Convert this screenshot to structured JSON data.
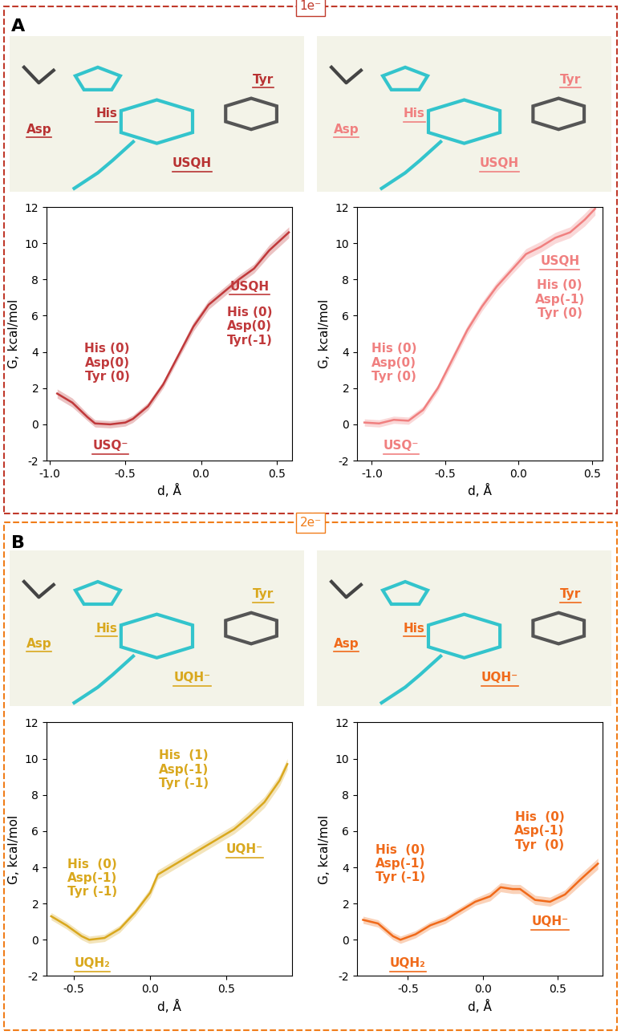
{
  "panels": [
    {
      "label": "A",
      "tag": "1e⁻",
      "color": "#c0392b",
      "images": [
        {
          "labels": [
            "Asp",
            "His",
            "USQH",
            "Tyr"
          ],
          "color": "#b83232"
        },
        {
          "labels": [
            "Asp",
            "His",
            "USQH",
            "Tyr"
          ],
          "color": "#f08080"
        }
      ]
    },
    {
      "label": "B",
      "tag": "2e⁻",
      "color": "#f07d1a",
      "images": [
        {
          "labels": [
            "Asp",
            "His",
            "UQH⁻",
            "Tyr"
          ],
          "color": "#d9a81e"
        },
        {
          "labels": [
            "Asp",
            "His",
            "UQH⁻",
            "Tyr"
          ],
          "color": "#f06a1a"
        }
      ]
    }
  ],
  "chart_data": [
    {
      "type": "line",
      "color": "#c0393b",
      "xlabel": "d, Å",
      "ylabel": "G, kcal/mol",
      "x": [
        -0.95,
        -0.85,
        -0.75,
        -0.7,
        -0.6,
        -0.5,
        -0.45,
        -0.35,
        -0.25,
        -0.15,
        -0.05,
        0.05,
        0.15,
        0.25,
        0.35,
        0.45,
        0.58
      ],
      "values": [
        1.7,
        1.2,
        0.4,
        0.05,
        0.0,
        0.1,
        0.3,
        1.0,
        2.2,
        3.8,
        5.4,
        6.6,
        7.3,
        8.0,
        8.6,
        9.6,
        10.6
      ],
      "error": [
        0.25,
        0.25,
        0.2,
        0.2,
        0.2,
        0.2,
        0.2,
        0.2,
        0.2,
        0.2,
        0.25,
        0.25,
        0.25,
        0.25,
        0.25,
        0.3,
        0.3
      ],
      "xlim": [
        -1.02,
        0.6
      ],
      "ylim": [
        -2,
        12
      ],
      "xticks": [
        -1.0,
        -0.5,
        0.0,
        0.5
      ],
      "yticks": [
        -2,
        0,
        2,
        4,
        6,
        8,
        10,
        12
      ],
      "annotations": [
        {
          "text": "His (0)\nAsp(0)\nTyr (0)",
          "x": -0.62,
          "y": 3.4
        },
        {
          "text": "USQ⁻",
          "x": -0.6,
          "y": -1.2
        },
        {
          "text": "USQH",
          "x": 0.32,
          "y": 7.6
        },
        {
          "text": "His (0)\nAsp(0)\nTyr(-1)",
          "x": 0.32,
          "y": 5.4
        }
      ]
    },
    {
      "type": "line",
      "color": "#f08080",
      "xlabel": "d, Å",
      "ylabel": "G, kcal/mol",
      "x": [
        -1.05,
        -0.95,
        -0.85,
        -0.75,
        -0.65,
        -0.55,
        -0.45,
        -0.35,
        -0.25,
        -0.15,
        -0.05,
        0.05,
        0.15,
        0.25,
        0.35,
        0.45,
        0.52
      ],
      "values": [
        0.1,
        0.05,
        0.25,
        0.2,
        0.8,
        2.0,
        3.6,
        5.2,
        6.5,
        7.6,
        8.5,
        9.4,
        9.8,
        10.3,
        10.6,
        11.3,
        11.9
      ],
      "error": [
        0.2,
        0.2,
        0.2,
        0.2,
        0.2,
        0.2,
        0.25,
        0.25,
        0.25,
        0.25,
        0.25,
        0.3,
        0.3,
        0.3,
        0.3,
        0.35,
        0.35
      ],
      "xlim": [
        -1.1,
        0.57
      ],
      "ylim": [
        -2,
        12
      ],
      "xticks": [
        -1.0,
        -0.5,
        0.0,
        0.5
      ],
      "yticks": [
        -2,
        0,
        2,
        4,
        6,
        8,
        10,
        12
      ],
      "annotations": [
        {
          "text": "USQH",
          "x": 0.28,
          "y": 9.0
        },
        {
          "text": "His (0)\nAsp(-1)\nTyr (0)",
          "x": 0.28,
          "y": 6.9
        },
        {
          "text": "His (0)\nAsp(0)\nTyr (0)",
          "x": -0.85,
          "y": 3.4
        },
        {
          "text": "USQ⁻",
          "x": -0.8,
          "y": -1.2
        }
      ]
    },
    {
      "type": "line",
      "color": "#d9a81e",
      "xlabel": "d, Å",
      "ylabel": "G, kcal/mol",
      "x": [
        -0.65,
        -0.55,
        -0.45,
        -0.4,
        -0.3,
        -0.2,
        -0.1,
        0.0,
        0.05,
        0.15,
        0.25,
        0.35,
        0.45,
        0.55,
        0.65,
        0.75,
        0.85,
        0.9
      ],
      "values": [
        1.3,
        0.8,
        0.2,
        0.0,
        0.1,
        0.6,
        1.5,
        2.6,
        3.6,
        4.1,
        4.6,
        5.1,
        5.6,
        6.1,
        6.8,
        7.6,
        8.8,
        9.7
      ],
      "error": [
        0.2,
        0.2,
        0.2,
        0.2,
        0.2,
        0.2,
        0.2,
        0.25,
        0.25,
        0.25,
        0.25,
        0.25,
        0.25,
        0.25,
        0.3,
        0.3,
        0.3,
        0.3
      ],
      "xlim": [
        -0.68,
        0.93
      ],
      "ylim": [
        -2,
        12
      ],
      "xticks": [
        -0.5,
        0.0,
        0.5
      ],
      "yticks": [
        -2,
        0,
        2,
        4,
        6,
        8,
        10,
        12
      ],
      "annotations": [
        {
          "text": "His  (0)\nAsp(-1)\nTyr (-1)",
          "x": -0.38,
          "y": 3.4
        },
        {
          "text": "UQH₂",
          "x": -0.38,
          "y": -1.3
        },
        {
          "text": "His  (1)\nAsp(-1)\nTyr (-1)",
          "x": 0.22,
          "y": 9.4
        },
        {
          "text": "UQH⁻",
          "x": 0.62,
          "y": 5.0
        }
      ]
    },
    {
      "type": "line",
      "color": "#f06a1a",
      "xlabel": "d, Å",
      "ylabel": "G, kcal/mol",
      "x": [
        -0.8,
        -0.7,
        -0.6,
        -0.55,
        -0.45,
        -0.35,
        -0.25,
        -0.15,
        -0.05,
        0.05,
        0.12,
        0.2,
        0.25,
        0.35,
        0.45,
        0.55,
        0.65,
        0.77
      ],
      "values": [
        1.1,
        0.9,
        0.2,
        0.0,
        0.3,
        0.8,
        1.1,
        1.6,
        2.1,
        2.4,
        2.9,
        2.8,
        2.8,
        2.2,
        2.1,
        2.5,
        3.3,
        4.2
      ],
      "error": [
        0.2,
        0.2,
        0.2,
        0.2,
        0.2,
        0.2,
        0.2,
        0.2,
        0.2,
        0.25,
        0.25,
        0.25,
        0.25,
        0.25,
        0.25,
        0.25,
        0.3,
        0.3
      ],
      "xlim": [
        -0.84,
        0.8
      ],
      "ylim": [
        -2,
        12
      ],
      "xticks": [
        -0.5,
        0.0,
        0.5
      ],
      "yticks": [
        -2,
        0,
        2,
        4,
        6,
        8,
        10,
        12
      ],
      "annotations": [
        {
          "text": "His  (0)\nAsp(-1)\nTyr (-1)",
          "x": -0.55,
          "y": 4.2
        },
        {
          "text": "UQH₂",
          "x": -0.5,
          "y": -1.3
        },
        {
          "text": "His  (0)\nAsp(-1)\nTyr  (0)",
          "x": 0.38,
          "y": 6.0
        },
        {
          "text": "UQH⁻",
          "x": 0.45,
          "y": 1.0
        }
      ]
    }
  ]
}
